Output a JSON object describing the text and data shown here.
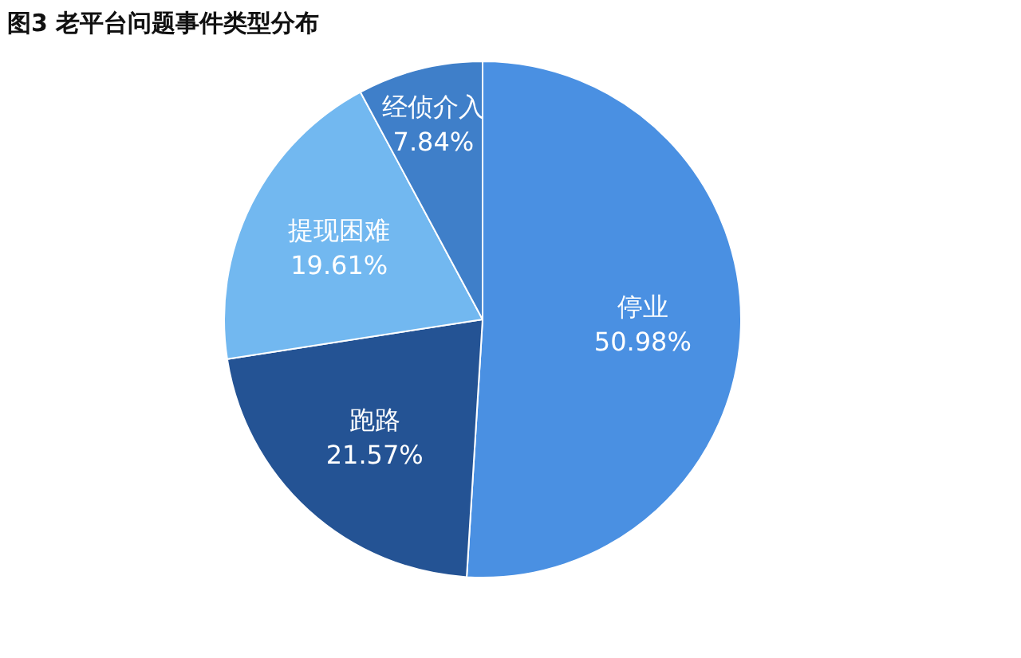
{
  "chart_data": {
    "type": "pie",
    "title": "图3 老平台问题事件类型分布",
    "categories": [
      "停业",
      "跑路",
      "提现困难",
      "经侦介入"
    ],
    "values": [
      50.98,
      21.57,
      19.61,
      7.84
    ],
    "colors": [
      "#4a90e2",
      "#245394",
      "#72b8f0",
      "#3f7fc9"
    ],
    "value_labels": [
      "50.98%",
      "21.57%",
      "19.61%",
      "7.84%"
    ]
  }
}
